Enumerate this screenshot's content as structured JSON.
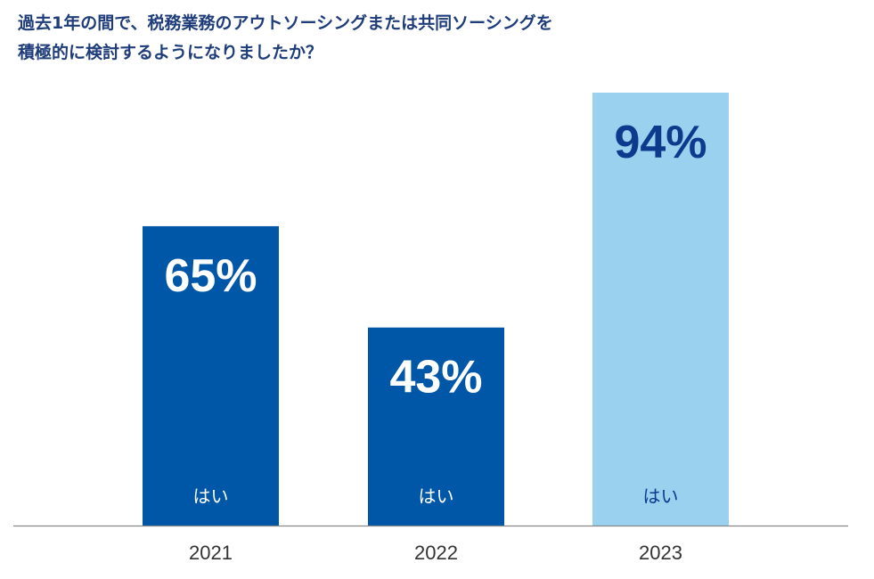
{
  "title": {
    "line1": "過去1年の間で、税務業務のアウトソーシングまたは共同ソーシングを",
    "line2": "積極的に検討するようになりましたか？"
  },
  "chart_data": {
    "type": "bar",
    "categories": [
      "2021",
      "2022",
      "2023"
    ],
    "values": [
      65,
      43,
      94
    ],
    "value_labels": [
      "65%",
      "43%",
      "94%"
    ],
    "bar_label": "はい",
    "ylim": [
      0,
      100
    ],
    "colors": [
      "#0057a8",
      "#0057a8",
      "#9ad1ee"
    ],
    "label_colors": [
      "#ffffff",
      "#ffffff",
      "#0d3a8c"
    ],
    "axis_color": "#888888",
    "tick_color": "#333333"
  }
}
